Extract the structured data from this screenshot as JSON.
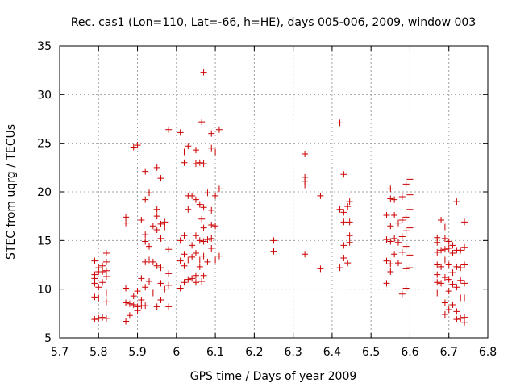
{
  "chart_data": {
    "type": "scatter",
    "title": "Rec. cas1 (Lon=110, Lat=-66, h=HE), days 005-006, 2009, window 003",
    "xlabel": "GPS time / Days of year 2009",
    "ylabel": "STEC from uqrg / TECUs",
    "xlim": [
      5.7,
      6.8
    ],
    "ylim": [
      5,
      35
    ],
    "xticks": [
      "5.7",
      "5.8",
      "5.9",
      "6",
      "6.1",
      "6.2",
      "6.3",
      "6.4",
      "6.5",
      "6.6",
      "6.7",
      "6.8"
    ],
    "yticks": [
      "5",
      "10",
      "15",
      "20",
      "25",
      "30",
      "35"
    ],
    "grid": true,
    "marker": "+",
    "color": "#cc0000",
    "points": [
      [
        5.79,
        12.9
      ],
      [
        5.79,
        11.5
      ],
      [
        5.79,
        11.1
      ],
      [
        5.79,
        10.6
      ],
      [
        5.79,
        9.2
      ],
      [
        5.79,
        6.9
      ],
      [
        5.8,
        12.2
      ],
      [
        5.8,
        11.8
      ],
      [
        5.8,
        10.2
      ],
      [
        5.8,
        9.1
      ],
      [
        5.8,
        7.0
      ],
      [
        5.81,
        12.4
      ],
      [
        5.81,
        11.8
      ],
      [
        5.81,
        10.7
      ],
      [
        5.81,
        7.1
      ],
      [
        5.82,
        13.7
      ],
      [
        5.82,
        12.8
      ],
      [
        5.82,
        11.9
      ],
      [
        5.82,
        11.3
      ],
      [
        5.82,
        9.6
      ],
      [
        5.82,
        8.7
      ],
      [
        5.82,
        7.0
      ],
      [
        5.87,
        17.4
      ],
      [
        5.87,
        16.8
      ],
      [
        5.87,
        10.1
      ],
      [
        5.87,
        8.6
      ],
      [
        5.87,
        6.7
      ],
      [
        5.88,
        8.5
      ],
      [
        5.88,
        7.3
      ],
      [
        5.89,
        24.6
      ],
      [
        5.89,
        9.3
      ],
      [
        5.89,
        8.4
      ],
      [
        5.9,
        24.8
      ],
      [
        5.9,
        9.8
      ],
      [
        5.9,
        8.2
      ],
      [
        5.9,
        7.8
      ],
      [
        5.91,
        17.1
      ],
      [
        5.91,
        11.1
      ],
      [
        5.91,
        8.9
      ],
      [
        5.91,
        8.3
      ],
      [
        5.92,
        22.1
      ],
      [
        5.92,
        19.2
      ],
      [
        5.92,
        15.6
      ],
      [
        5.92,
        14.9
      ],
      [
        5.92,
        12.8
      ],
      [
        5.92,
        10.2
      ],
      [
        5.92,
        8.3
      ],
      [
        5.93,
        19.9
      ],
      [
        5.93,
        14.4
      ],
      [
        5.93,
        13.0
      ],
      [
        5.93,
        10.8
      ],
      [
        5.94,
        16.5
      ],
      [
        5.94,
        12.8
      ],
      [
        5.94,
        9.6
      ],
      [
        5.95,
        22.5
      ],
      [
        5.95,
        18.2
      ],
      [
        5.95,
        17.5
      ],
      [
        5.95,
        16.1
      ],
      [
        5.95,
        12.4
      ],
      [
        5.95,
        8.2
      ],
      [
        5.96,
        21.4
      ],
      [
        5.96,
        16.7
      ],
      [
        5.96,
        15.2
      ],
      [
        5.96,
        12.2
      ],
      [
        5.96,
        10.6
      ],
      [
        5.96,
        8.9
      ],
      [
        5.97,
        16.9
      ],
      [
        5.97,
        16.4
      ],
      [
        5.97,
        10.0
      ],
      [
        5.98,
        26.4
      ],
      [
        5.98,
        14.1
      ],
      [
        5.98,
        11.6
      ],
      [
        5.98,
        10.4
      ],
      [
        5.98,
        8.2
      ],
      [
        6.01,
        26.1
      ],
      [
        6.01,
        15.0
      ],
      [
        6.01,
        12.9
      ],
      [
        6.01,
        10.1
      ],
      [
        6.02,
        24.1
      ],
      [
        6.02,
        23.0
      ],
      [
        6.02,
        15.5
      ],
      [
        6.02,
        13.6
      ],
      [
        6.02,
        12.4
      ],
      [
        6.02,
        10.7
      ],
      [
        6.03,
        24.7
      ],
      [
        6.03,
        19.6
      ],
      [
        6.03,
        18.2
      ],
      [
        6.03,
        13.0
      ],
      [
        6.03,
        11.0
      ],
      [
        6.04,
        19.6
      ],
      [
        6.04,
        14.5
      ],
      [
        6.04,
        13.3
      ],
      [
        6.04,
        11.1
      ],
      [
        6.05,
        24.3
      ],
      [
        6.05,
        22.9
      ],
      [
        6.05,
        19.2
      ],
      [
        6.05,
        15.5
      ],
      [
        6.05,
        13.7
      ],
      [
        6.05,
        11.4
      ],
      [
        6.05,
        10.7
      ],
      [
        6.06,
        23.0
      ],
      [
        6.06,
        18.7
      ],
      [
        6.06,
        15.0
      ],
      [
        6.06,
        13.0
      ],
      [
        6.06,
        12.3
      ],
      [
        6.065,
        27.2
      ],
      [
        6.065,
        17.2
      ],
      [
        6.065,
        10.8
      ],
      [
        6.07,
        32.3
      ],
      [
        6.07,
        22.9
      ],
      [
        6.07,
        18.4
      ],
      [
        6.07,
        16.3
      ],
      [
        6.07,
        14.9
      ],
      [
        6.07,
        13.4
      ],
      [
        6.07,
        11.4
      ],
      [
        6.08,
        19.9
      ],
      [
        6.08,
        15.1
      ],
      [
        6.08,
        12.8
      ],
      [
        6.09,
        26.0
      ],
      [
        6.09,
        24.5
      ],
      [
        6.09,
        18.1
      ],
      [
        6.09,
        16.6
      ],
      [
        6.09,
        15.2
      ],
      [
        6.09,
        14.2
      ],
      [
        6.1,
        24.1
      ],
      [
        6.1,
        19.6
      ],
      [
        6.1,
        16.5
      ],
      [
        6.1,
        13.0
      ],
      [
        6.11,
        26.4
      ],
      [
        6.11,
        20.3
      ],
      [
        6.11,
        13.4
      ],
      [
        6.25,
        15.0
      ],
      [
        6.25,
        13.9
      ],
      [
        6.33,
        23.9
      ],
      [
        6.33,
        21.5
      ],
      [
        6.33,
        21.1
      ],
      [
        6.33,
        20.7
      ],
      [
        6.33,
        13.6
      ],
      [
        6.37,
        19.6
      ],
      [
        6.37,
        12.1
      ],
      [
        6.42,
        27.1
      ],
      [
        6.42,
        18.2
      ],
      [
        6.42,
        12.2
      ],
      [
        6.43,
        21.8
      ],
      [
        6.43,
        17.9
      ],
      [
        6.43,
        16.9
      ],
      [
        6.43,
        14.5
      ],
      [
        6.43,
        13.2
      ],
      [
        6.44,
        18.5
      ],
      [
        6.44,
        12.7
      ],
      [
        6.445,
        19.0
      ],
      [
        6.445,
        16.9
      ],
      [
        6.445,
        15.5
      ],
      [
        6.445,
        14.8
      ],
      [
        6.54,
        17.6
      ],
      [
        6.54,
        15.1
      ],
      [
        6.54,
        12.9
      ],
      [
        6.54,
        10.6
      ],
      [
        6.55,
        20.3
      ],
      [
        6.55,
        19.3
      ],
      [
        6.55,
        16.5
      ],
      [
        6.55,
        14.9
      ],
      [
        6.55,
        12.6
      ],
      [
        6.55,
        11.8
      ],
      [
        6.56,
        19.2
      ],
      [
        6.56,
        17.6
      ],
      [
        6.56,
        15.2
      ],
      [
        6.56,
        13.6
      ],
      [
        6.57,
        16.8
      ],
      [
        6.57,
        14.8
      ],
      [
        6.57,
        12.7
      ],
      [
        6.58,
        19.5
      ],
      [
        6.58,
        17.1
      ],
      [
        6.58,
        15.4
      ],
      [
        6.58,
        13.8
      ],
      [
        6.58,
        9.5
      ],
      [
        6.59,
        20.8
      ],
      [
        6.59,
        17.4
      ],
      [
        6.59,
        16.0
      ],
      [
        6.59,
        14.4
      ],
      [
        6.59,
        12.1
      ],
      [
        6.59,
        10.1
      ],
      [
        6.6,
        21.3
      ],
      [
        6.6,
        19.7
      ],
      [
        6.6,
        18.2
      ],
      [
        6.6,
        16.3
      ],
      [
        6.6,
        13.5
      ],
      [
        6.6,
        12.2
      ],
      [
        6.67,
        15.3
      ],
      [
        6.67,
        14.8
      ],
      [
        6.67,
        13.8
      ],
      [
        6.67,
        12.5
      ],
      [
        6.67,
        11.5
      ],
      [
        6.67,
        10.7
      ],
      [
        6.67,
        9.6
      ],
      [
        6.68,
        17.1
      ],
      [
        6.68,
        14.0
      ],
      [
        6.68,
        12.3
      ],
      [
        6.68,
        10.6
      ],
      [
        6.69,
        16.4
      ],
      [
        6.69,
        15.2
      ],
      [
        6.69,
        14.1
      ],
      [
        6.69,
        13.0
      ],
      [
        6.69,
        11.2
      ],
      [
        6.69,
        8.6
      ],
      [
        6.69,
        7.4
      ],
      [
        6.7,
        14.9
      ],
      [
        6.7,
        14.2
      ],
      [
        6.7,
        12.5
      ],
      [
        6.7,
        11.0
      ],
      [
        6.7,
        9.8
      ],
      [
        6.7,
        7.9
      ],
      [
        6.71,
        14.5
      ],
      [
        6.71,
        13.7
      ],
      [
        6.71,
        11.7
      ],
      [
        6.71,
        10.5
      ],
      [
        6.71,
        8.4
      ],
      [
        6.72,
        19.0
      ],
      [
        6.72,
        14.0
      ],
      [
        6.72,
        12.3
      ],
      [
        6.72,
        10.2
      ],
      [
        6.72,
        7.7
      ],
      [
        6.72,
        6.9
      ],
      [
        6.73,
        14.0
      ],
      [
        6.73,
        12.2
      ],
      [
        6.73,
        10.9
      ],
      [
        6.73,
        9.1
      ],
      [
        6.73,
        7.0
      ],
      [
        6.74,
        16.9
      ],
      [
        6.74,
        14.3
      ],
      [
        6.74,
        12.5
      ],
      [
        6.74,
        10.6
      ],
      [
        6.74,
        9.1
      ],
      [
        6.74,
        7.1
      ],
      [
        6.74,
        6.6
      ]
    ]
  }
}
